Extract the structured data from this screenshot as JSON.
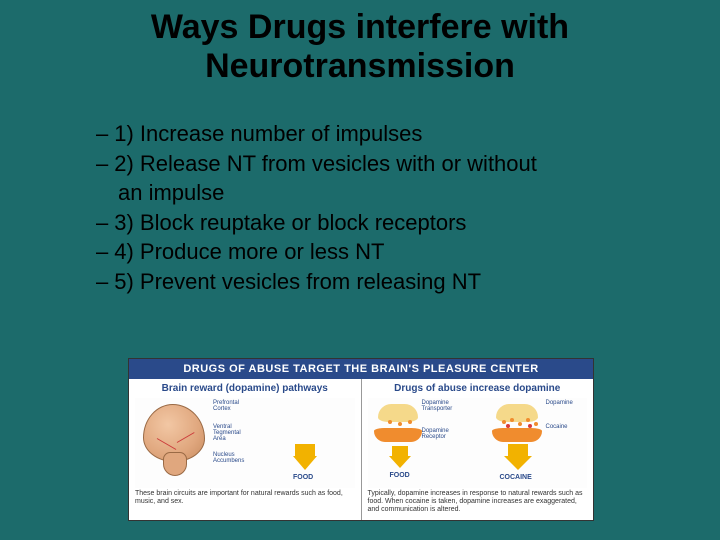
{
  "title_fontsize": 34,
  "title_line1": "Ways Drugs interfere with",
  "title_line2": "Neurotransmission",
  "bullet_fontsize": 22,
  "bullets": [
    "1) Increase number of impulses",
    "2) Release NT from vesicles with or without",
    "an impulse",
    "3) Block reuptake or block receptors",
    "4) Produce more or less NT",
    "5) Prevent vesicles from releasing NT"
  ],
  "figure": {
    "header": "DRUGS OF ABUSE TARGET THE BRAIN'S PLEASURE CENTER",
    "header_fontsize": 11,
    "header_bg": "#2a4a8a",
    "col_title_fontsize": 10,
    "caption_fontsize": 7,
    "tiny_label_fontsize": 6,
    "left": {
      "title": "Brain reward (dopamine) pathways",
      "caption": "These brain circuits are important for natural rewards such as food, music, and sex.",
      "arrow_label": "FOOD",
      "brain_labels": {
        "prefrontal": "Prefrontal\nCortex",
        "nac": "Nucleus\nAccumbens",
        "vta": "Ventral\nTegmental\nArea"
      }
    },
    "right": {
      "title": "Drugs of abuse increase dopamine",
      "caption": "Typically, dopamine increases in response to natural rewards such as food. When cocaine is taken, dopamine increases are exaggerated, and communication is altered.",
      "arrow_label_left": "FOOD",
      "arrow_label_right": "COCAINE",
      "labels": {
        "transporter": "Dopamine\nTransporter",
        "receptor": "Dopamine\nReceptor",
        "dopamine": "Dopamine",
        "cocaine": "Cocaine"
      }
    },
    "colors": {
      "arrow": "#f2b200",
      "dopamine_dot": "#f08c2e",
      "cocaine_dot": "#d93b3b",
      "cell": "#f5d98a",
      "cell2": "#f08c2e"
    }
  },
  "background_color": "#1c6b6b"
}
